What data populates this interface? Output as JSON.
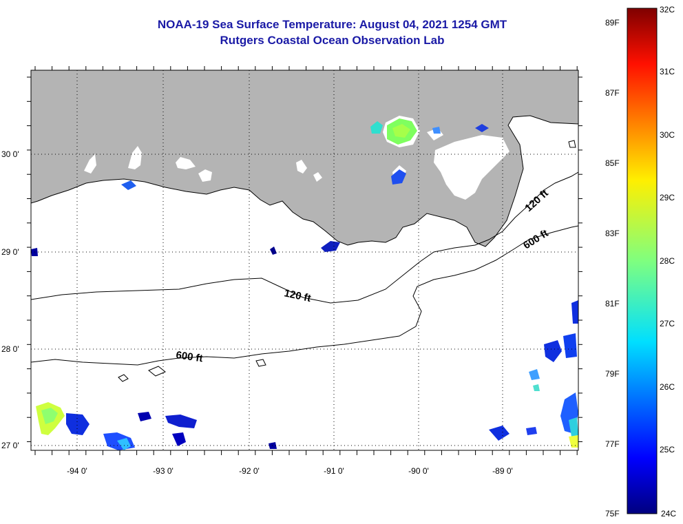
{
  "header": {
    "title": "NOAA-19 Sea Surface Temperature:  August 04, 2021 1254 GMT",
    "subtitle": "Rutgers Coastal Ocean Observation Lab"
  },
  "map": {
    "lat_labels": [
      "30 0'",
      "29 0'",
      "28 0'",
      "27 0'"
    ],
    "lon_labels": [
      "-94 0'",
      "-93 0'",
      "-92 0'",
      "-91 0'",
      "-90 0'",
      "-89 0'"
    ],
    "contour_labels": {
      "c120_west": "120 ft",
      "c600_west": "600 ft",
      "c120_east": "120 ft",
      "c600_east": "600 ft"
    },
    "colors": {
      "land": "#b4b4b4",
      "ocean": "#ffffff",
      "title": "#1a1aa6"
    }
  },
  "colorbar": {
    "fahrenheit": [
      "89F",
      "87F",
      "85F",
      "83F",
      "81F",
      "79F",
      "77F",
      "75F"
    ],
    "celsius": [
      "32C",
      "31C",
      "30C",
      "29C",
      "28C",
      "27C",
      "26C",
      "25C",
      "24C"
    ],
    "range_c": [
      24,
      32
    ],
    "colormap": "jet"
  }
}
